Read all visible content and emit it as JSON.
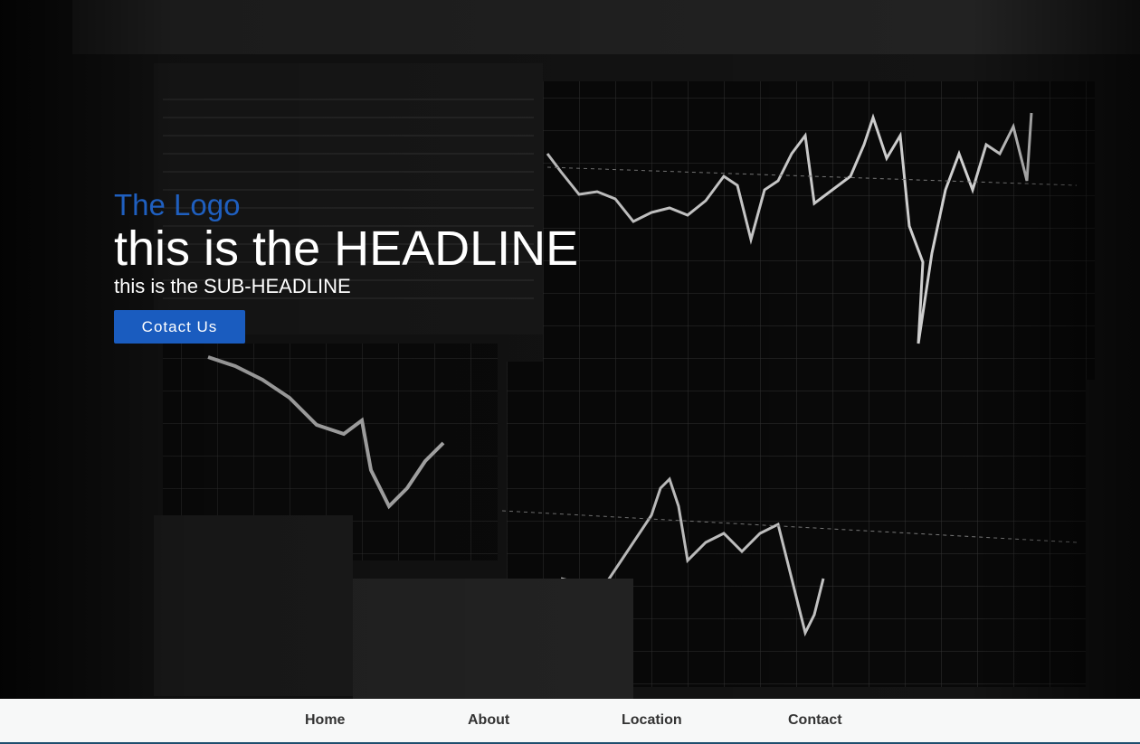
{
  "hero": {
    "logo": "The Logo",
    "headline": "this is the HEADLINE",
    "subheadline": "this is the SUB-HEADLINE",
    "cta_label": "Cotact Us",
    "background_desc_icon": "stock-chart-monitor-photo"
  },
  "nav": {
    "items": [
      "Home",
      "About",
      "Location",
      "Contact"
    ]
  },
  "colors": {
    "accent": "#1a5cbf",
    "logo": "#1f5fbf",
    "nav_bg": "#f7f8f8",
    "nav_border": "#1f4e6e"
  }
}
